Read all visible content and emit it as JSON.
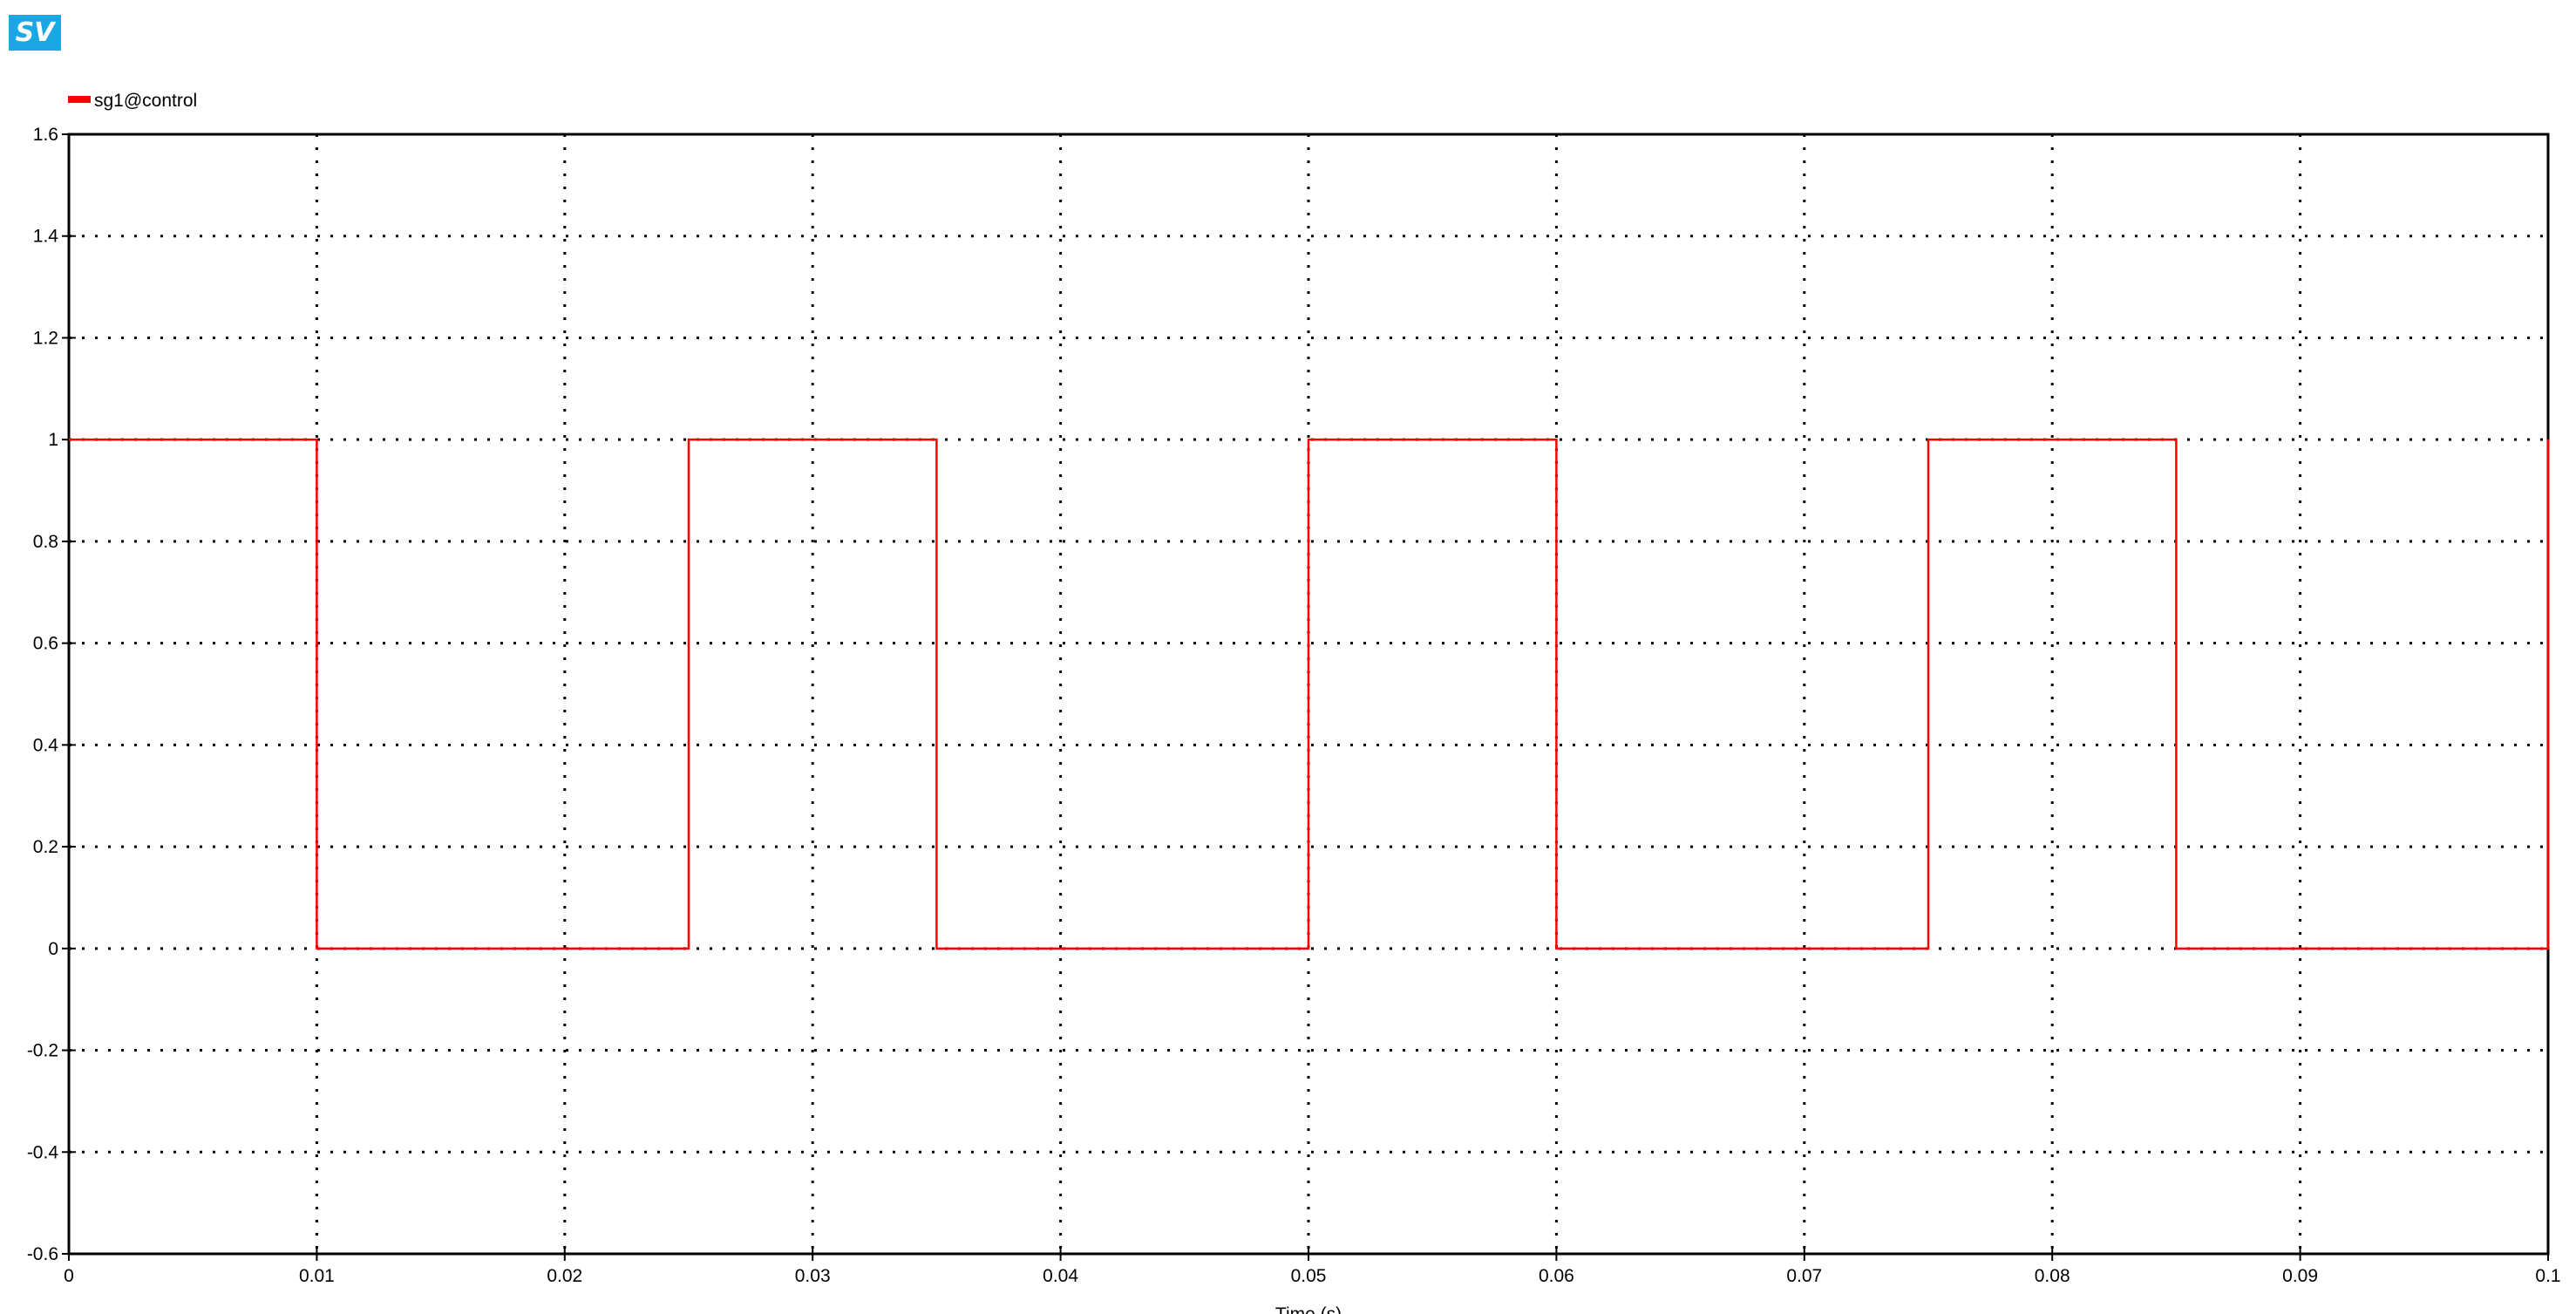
{
  "app": {
    "logo_text": "SV",
    "logo_color": "#1aa7e3"
  },
  "chart_data": {
    "type": "line",
    "title": "",
    "xlabel": "Time (s)",
    "ylabel": "",
    "xlim": [
      0,
      0.1
    ],
    "ylim": [
      -0.6,
      1.6
    ],
    "xticks": [
      "0",
      "0.01",
      "0.02",
      "0.03",
      "0.04",
      "0.05",
      "0.06",
      "0.07",
      "0.08",
      "0.09",
      "0.1"
    ],
    "yticks": [
      "-0.6",
      "-0.4",
      "-0.2",
      "0",
      "0.2",
      "0.4",
      "0.6",
      "0.8",
      "1",
      "1.2",
      "1.4",
      "1.6"
    ],
    "grid": true,
    "legend_placement": "top-left",
    "series": [
      {
        "name": "sg1@control",
        "color": "#ff0000",
        "x": [
          0,
          0.01,
          0.01,
          0.025,
          0.025,
          0.035,
          0.035,
          0.05,
          0.05,
          0.06,
          0.06,
          0.075,
          0.075,
          0.085,
          0.085,
          0.1,
          0.1
        ],
        "y": [
          1,
          1,
          0,
          0,
          1,
          1,
          0,
          0,
          1,
          1,
          0,
          0,
          1,
          1,
          0,
          0,
          1
        ]
      }
    ]
  }
}
